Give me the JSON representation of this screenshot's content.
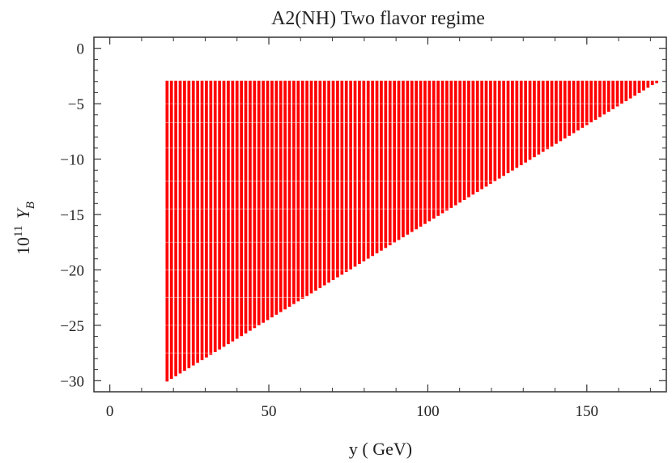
{
  "chart_data": {
    "type": "scatter",
    "title": "A2(NH) Two flavor regime",
    "xlabel": "y ( GeV)",
    "ylabel_base": "10",
    "ylabel_exp": "11",
    "ylabel_var": "Y",
    "ylabel_sub": "B",
    "xlim": [
      -5,
      175
    ],
    "ylim": [
      -31,
      1
    ],
    "xticks": [
      "0",
      "50",
      "100",
      "150"
    ],
    "xtick_values": [
      0,
      50,
      100,
      150
    ],
    "yticks": [
      "0",
      "−5",
      "−10",
      "−15",
      "−20",
      "−25",
      "−30"
    ],
    "ytick_values": [
      0,
      -5,
      -10,
      -15,
      -20,
      -25,
      -30
    ],
    "grid": false,
    "series": [
      {
        "color": "#ff0000",
        "region": {
          "shape": "triangle",
          "x_start": 18,
          "x_end": 172,
          "y_top": -3,
          "y_bottom_at_x_start": -30,
          "y_bottom_at_x_end": -3
        }
      }
    ]
  }
}
